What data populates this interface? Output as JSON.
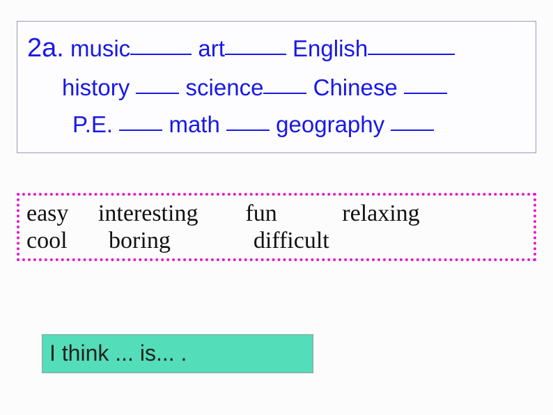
{
  "subjects": {
    "label": "2a.",
    "line1": {
      "w1": "music",
      "w2": "art",
      "w3": "English"
    },
    "line2": {
      "w1": "history",
      "w2": "science",
      "w3": "Chinese"
    },
    "line3": {
      "w1": "P.E.",
      "w2": "math",
      "w3": "geography"
    }
  },
  "words": {
    "row1": {
      "w1": "easy",
      "w2": "interesting",
      "w3": "fun",
      "w4": "relaxing"
    },
    "row2": {
      "w1": "cool",
      "w2": "boring",
      "w3": "difficult"
    }
  },
  "pattern": "I think ...  is...     .",
  "colors": {
    "subject_text": "#1818e8",
    "subject_border": "#9999bb",
    "words_border": "#e619c8",
    "pattern_bg": "#53ddb9",
    "body_bg": "#fcfcfc"
  }
}
